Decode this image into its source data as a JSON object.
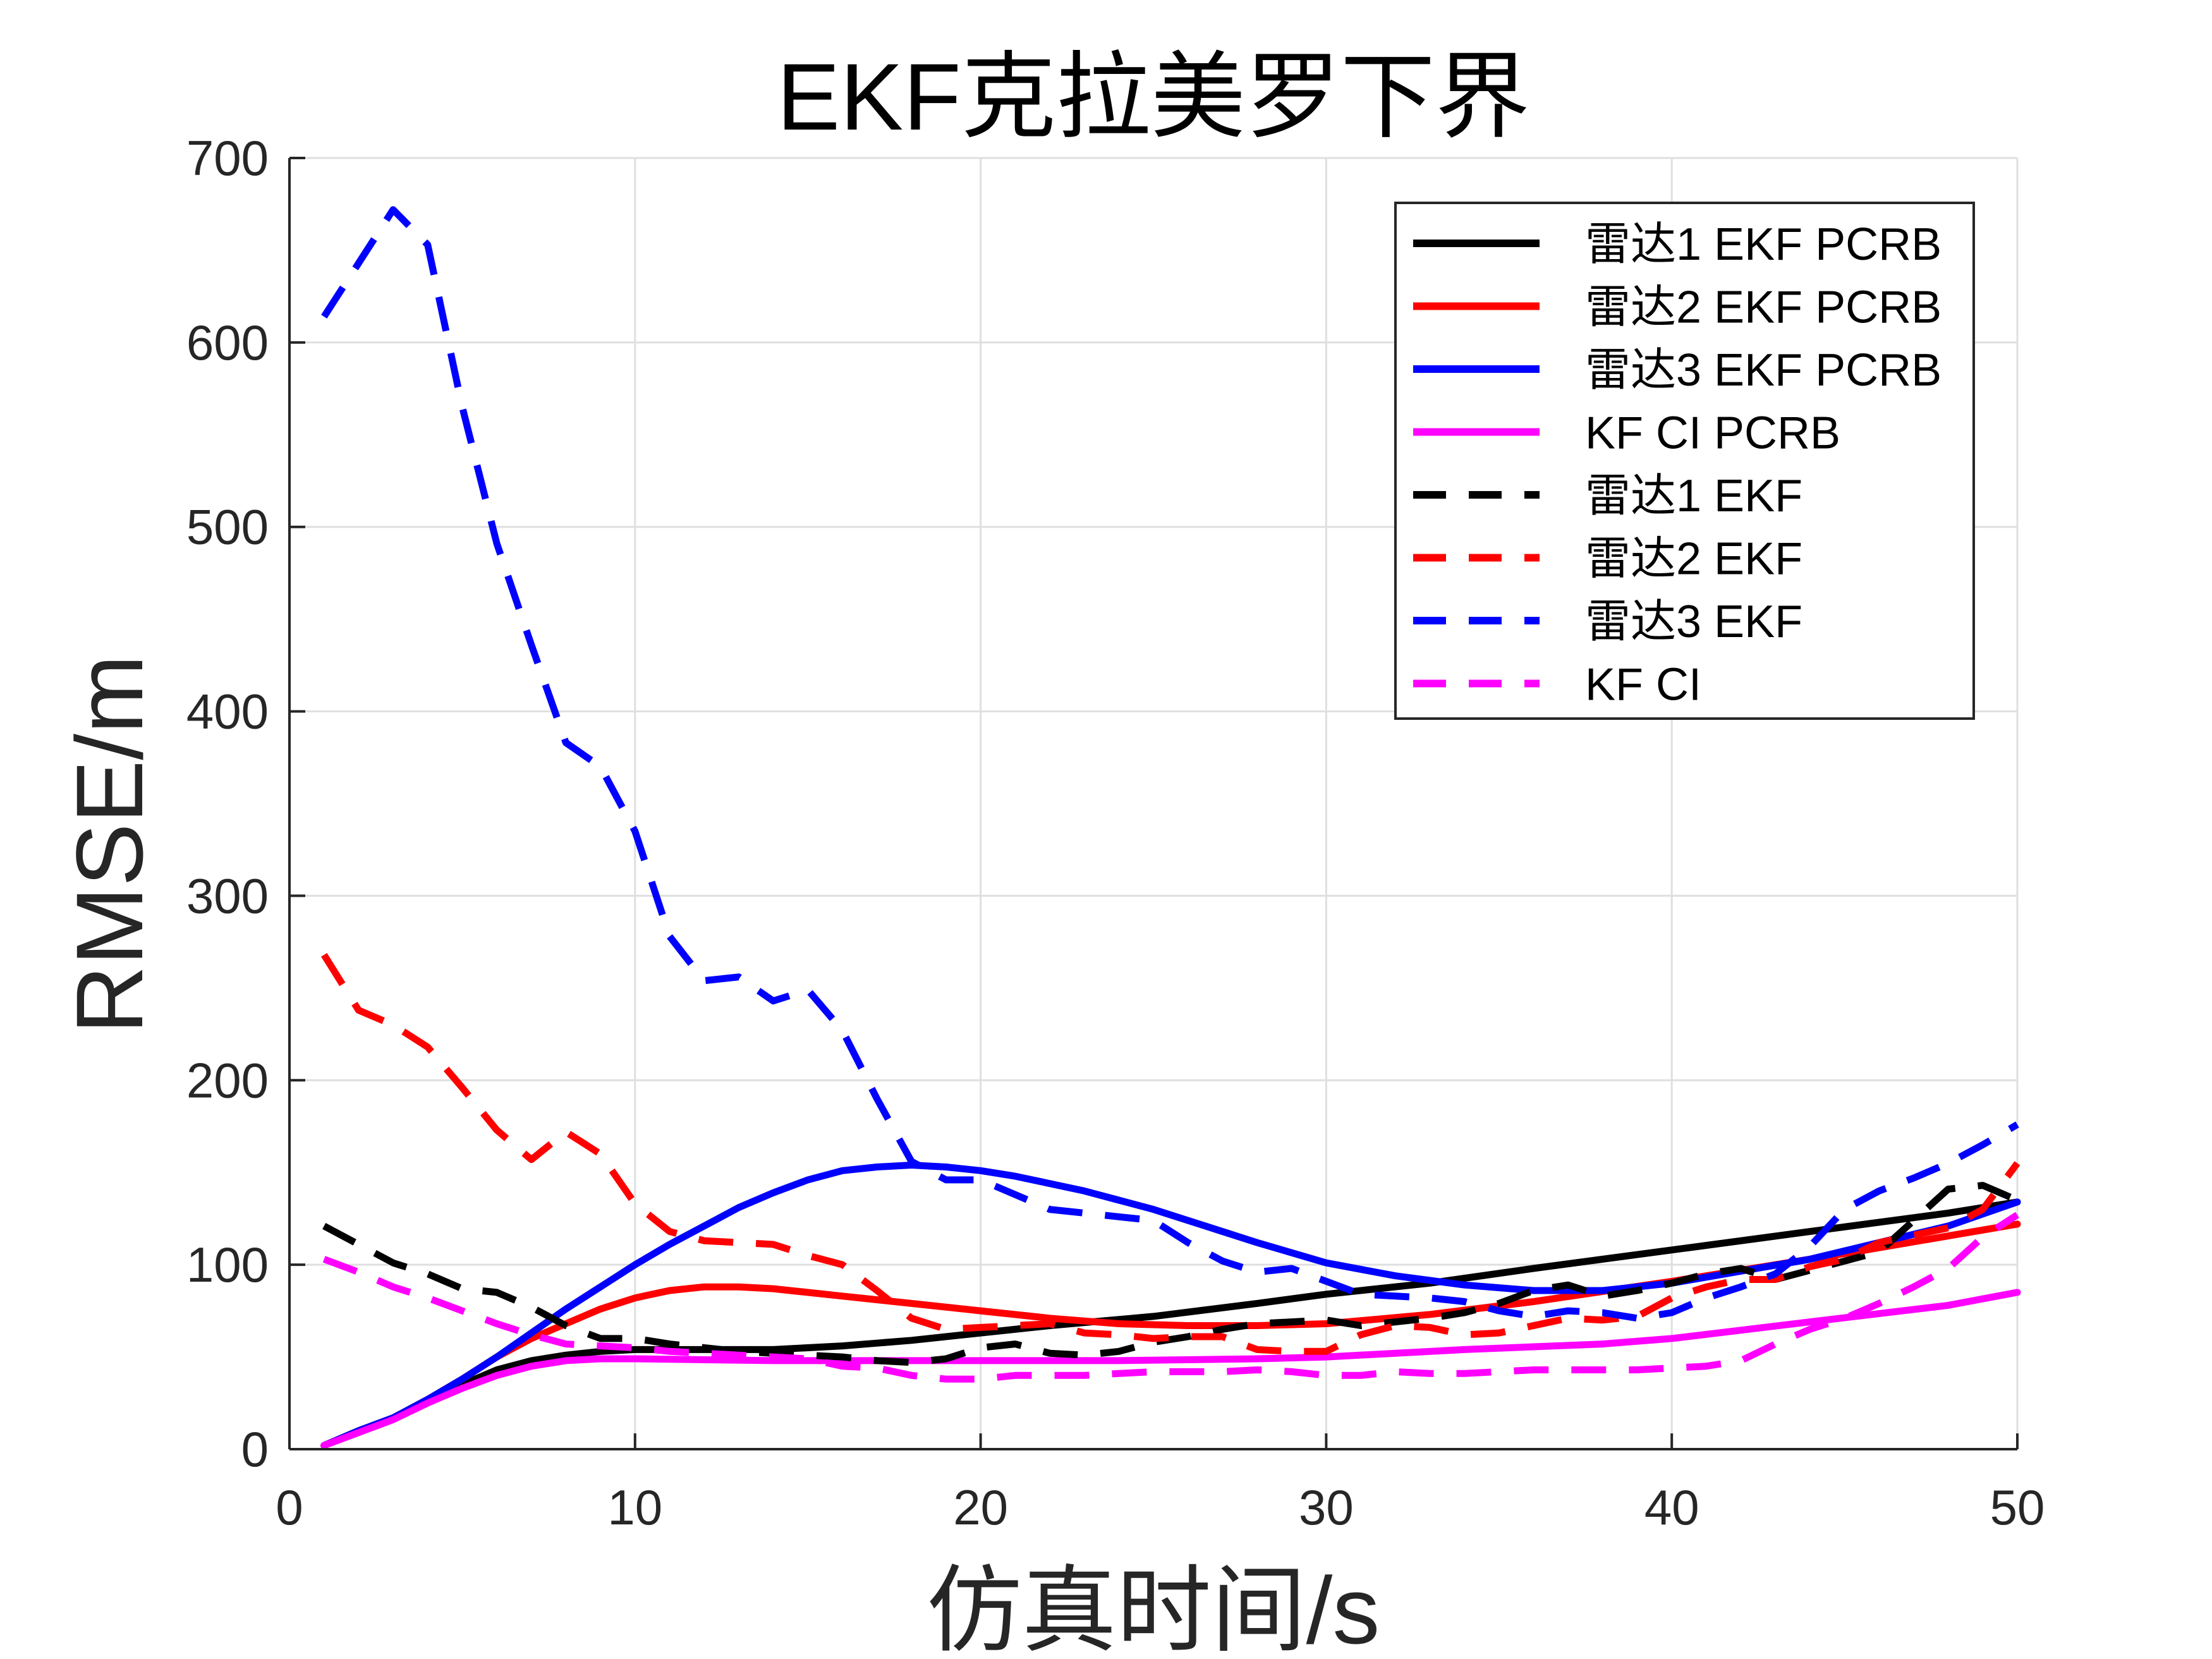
{
  "chart_data": {
    "type": "line",
    "title": "EKF克拉美罗下界",
    "xlabel": "仿真时间/s",
    "ylabel": "RMSE/m",
    "xlim": [
      0,
      50
    ],
    "ylim": [
      0,
      700
    ],
    "xticks": [
      0,
      10,
      20,
      30,
      40,
      50
    ],
    "yticks": [
      0,
      100,
      200,
      300,
      400,
      500,
      600,
      700
    ],
    "xtick_labels": [
      "0",
      "10",
      "20",
      "30",
      "40",
      "50"
    ],
    "ytick_labels": [
      "0",
      "100",
      "200",
      "300",
      "400",
      "500",
      "600",
      "700"
    ],
    "grid": true,
    "legend_position": "top-right",
    "series": [
      {
        "name": "雷达1 EKF PCRB",
        "color": "#000000",
        "style": "solid",
        "x": [
          1,
          2,
          3,
          4,
          5,
          6,
          7,
          8,
          9,
          10,
          12,
          14,
          16,
          18,
          20,
          22,
          25,
          28,
          30,
          33,
          36,
          40,
          44,
          48,
          50
        ],
        "y": [
          2,
          10,
          17,
          26,
          35,
          43,
          48,
          51,
          53,
          54,
          54,
          54,
          56,
          59,
          63,
          67,
          72,
          79,
          84,
          90,
          98,
          108,
          118,
          128,
          134
        ]
      },
      {
        "name": "雷达2 EKF PCRB",
        "color": "#ff0000",
        "style": "solid",
        "x": [
          1,
          2,
          3,
          4,
          5,
          6,
          7,
          8,
          9,
          10,
          11,
          12,
          13,
          14,
          16,
          18,
          20,
          22,
          24,
          26,
          28,
          30,
          33,
          36,
          40,
          45,
          50
        ],
        "y": [
          2,
          10,
          17,
          27,
          38,
          50,
          60,
          68,
          76,
          82,
          86,
          88,
          88,
          87,
          83,
          79,
          75,
          71,
          68,
          67,
          67,
          68,
          73,
          80,
          91,
          106,
          122
        ]
      },
      {
        "name": "雷达3 EKF PCRB",
        "color": "#0000ff",
        "style": "solid",
        "x": [
          1,
          2,
          3,
          4,
          5,
          6,
          7,
          8,
          9,
          10,
          11,
          12,
          13,
          14,
          15,
          16,
          17,
          18,
          19,
          20,
          21,
          22,
          23,
          24,
          25,
          26,
          28,
          30,
          32,
          34,
          36,
          38,
          40,
          44,
          48,
          50
        ],
        "y": [
          2,
          10,
          17,
          27,
          38,
          50,
          63,
          76,
          88,
          100,
          111,
          121,
          131,
          139,
          146,
          151,
          153,
          154,
          153,
          151,
          148,
          144,
          140,
          135,
          130,
          124,
          112,
          101,
          94,
          89,
          86,
          86,
          90,
          103,
          121,
          134
        ]
      },
      {
        "name": "KF CI PCRB",
        "color": "#ff00ff",
        "style": "solid",
        "x": [
          1,
          2,
          3,
          4,
          5,
          6,
          7,
          8,
          9,
          10,
          14,
          18,
          20,
          24,
          28,
          30,
          34,
          38,
          40,
          44,
          48,
          50
        ],
        "y": [
          2,
          9,
          16,
          25,
          33,
          40,
          45,
          48,
          49,
          49,
          48,
          48,
          48,
          48,
          49,
          50,
          54,
          57,
          60,
          69,
          78,
          85
        ]
      },
      {
        "name": "雷达1 EKF",
        "color": "#000000",
        "style": "dashed",
        "x": [
          1,
          2,
          3,
          4,
          5,
          6,
          7,
          8,
          9,
          10,
          11,
          12,
          13,
          14,
          15,
          16,
          17,
          18,
          19,
          20,
          21,
          22,
          23,
          24,
          25,
          26,
          27,
          28,
          29,
          30,
          31,
          32,
          33,
          34,
          35,
          36,
          37,
          38,
          39,
          40,
          41,
          42,
          43,
          44,
          45,
          46,
          47,
          48,
          49,
          50
        ],
        "y": [
          121,
          111,
          101,
          95,
          87,
          85,
          77,
          67,
          60,
          60,
          57,
          55,
          53,
          52,
          51,
          50,
          48,
          47,
          49,
          55,
          57,
          52,
          51,
          53,
          58,
          61,
          65,
          68,
          69,
          70,
          67,
          69,
          71,
          74,
          79,
          86,
          89,
          83,
          86,
          90,
          95,
          98,
          92,
          97,
          102,
          107,
          124,
          141,
          143,
          135
        ]
      },
      {
        "name": "雷达2 EKF",
        "color": "#ff0000",
        "style": "dashed",
        "x": [
          1,
          2,
          3,
          4,
          5,
          6,
          7,
          8,
          9,
          10,
          11,
          12,
          13,
          14,
          15,
          16,
          17,
          18,
          19,
          20,
          21,
          22,
          23,
          24,
          25,
          26,
          27,
          28,
          29,
          30,
          31,
          32,
          33,
          34,
          35,
          36,
          37,
          38,
          39,
          40,
          41,
          42,
          43,
          44,
          45,
          46,
          47,
          48,
          49,
          50
        ],
        "y": [
          268,
          238,
          230,
          218,
          196,
          173,
          157,
          172,
          160,
          133,
          118,
          113,
          112,
          111,
          105,
          100,
          86,
          71,
          65,
          66,
          67,
          68,
          63,
          62,
          60,
          61,
          61,
          54,
          53,
          53,
          62,
          67,
          66,
          62,
          63,
          67,
          71,
          70,
          72,
          82,
          88,
          92,
          92,
          99,
          103,
          112,
          116,
          120,
          130,
          155
        ]
      },
      {
        "name": "雷达3 EKF",
        "color": "#0000ff",
        "style": "dashed",
        "x": [
          1,
          2,
          3,
          4,
          5,
          6,
          7,
          8,
          9,
          10,
          11,
          12,
          13,
          14,
          15,
          16,
          17,
          18,
          19,
          20,
          21,
          22,
          23,
          24,
          25,
          26,
          27,
          28,
          29,
          30,
          31,
          32,
          33,
          34,
          35,
          36,
          37,
          38,
          39,
          40,
          41,
          42,
          43,
          44,
          45,
          46,
          47,
          48,
          49,
          50
        ],
        "y": [
          614,
          643,
          672,
          653,
          565,
          491,
          436,
          383,
          370,
          335,
          278,
          254,
          256,
          243,
          249,
          227,
          190,
          156,
          146,
          146,
          138,
          130,
          128,
          126,
          124,
          112,
          102,
          96,
          98,
          91,
          84,
          83,
          82,
          80,
          75,
          72,
          75,
          74,
          71,
          74,
          82,
          88,
          95,
          110,
          130,
          140,
          147,
          155,
          165,
          176
        ]
      },
      {
        "name": "KF CI",
        "color": "#ff00ff",
        "style": "dashed",
        "x": [
          1,
          2,
          3,
          4,
          5,
          6,
          7,
          8,
          9,
          10,
          11,
          12,
          13,
          14,
          15,
          16,
          17,
          18,
          19,
          20,
          21,
          22,
          23,
          24,
          25,
          26,
          27,
          28,
          29,
          30,
          31,
          32,
          33,
          34,
          35,
          36,
          37,
          38,
          39,
          40,
          41,
          42,
          43,
          44,
          45,
          46,
          47,
          48,
          49,
          50
        ],
        "y": [
          103,
          96,
          88,
          82,
          75,
          68,
          62,
          57,
          56,
          55,
          53,
          52,
          51,
          50,
          49,
          45,
          44,
          40,
          38,
          38,
          40,
          40,
          40,
          41,
          42,
          42,
          42,
          43,
          42,
          40,
          40,
          42,
          41,
          41,
          42,
          43,
          43,
          43,
          43,
          44,
          45,
          48,
          57,
          65,
          71,
          79,
          88,
          98,
          115,
          127
        ]
      }
    ]
  }
}
